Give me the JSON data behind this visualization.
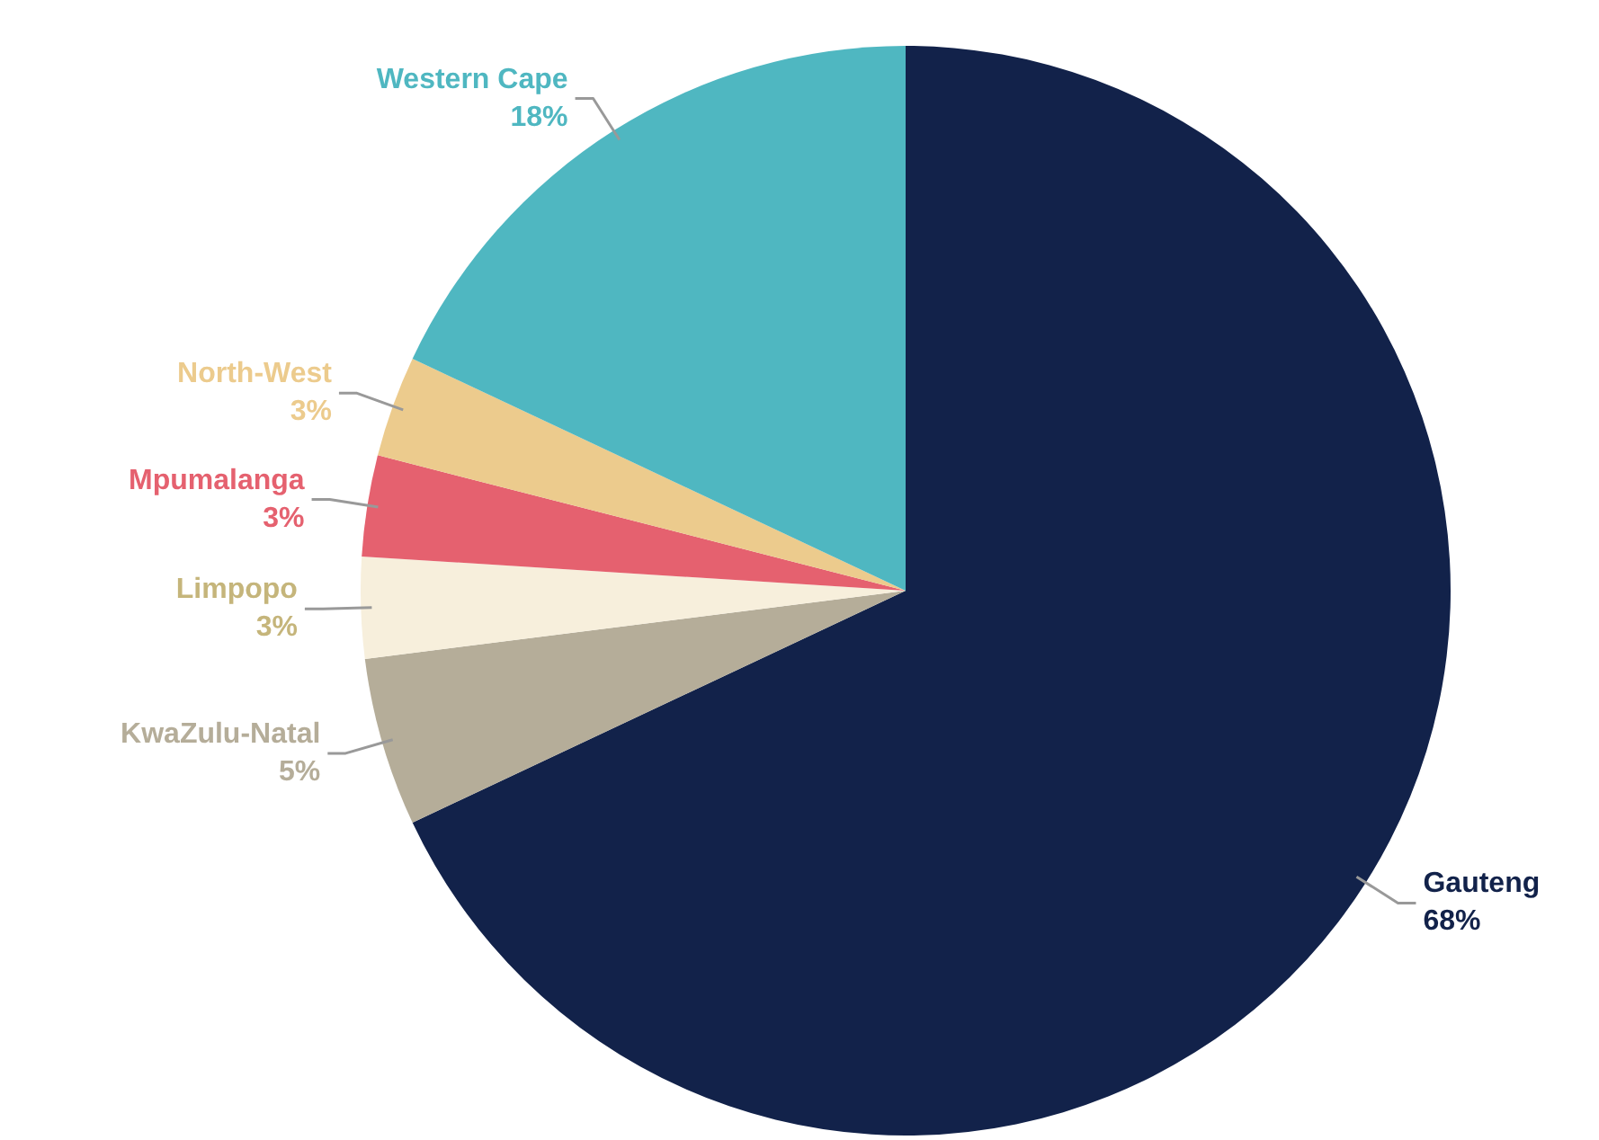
{
  "chart_data": {
    "type": "pie",
    "categories": [
      "Gauteng",
      "KwaZulu-Natal",
      "Limpopo",
      "Mpumalanga",
      "North-West",
      "Western Cape"
    ],
    "values": [
      68,
      5,
      3,
      3,
      3,
      18
    ],
    "colors": [
      "#12224a",
      "#b5ad99",
      "#f7efdc",
      "#e5616f",
      "#eccb8d",
      "#4fb7c1"
    ],
    "value_labels": [
      "68%",
      "5%",
      "3%",
      "3%",
      "3%",
      "18%"
    ]
  }
}
